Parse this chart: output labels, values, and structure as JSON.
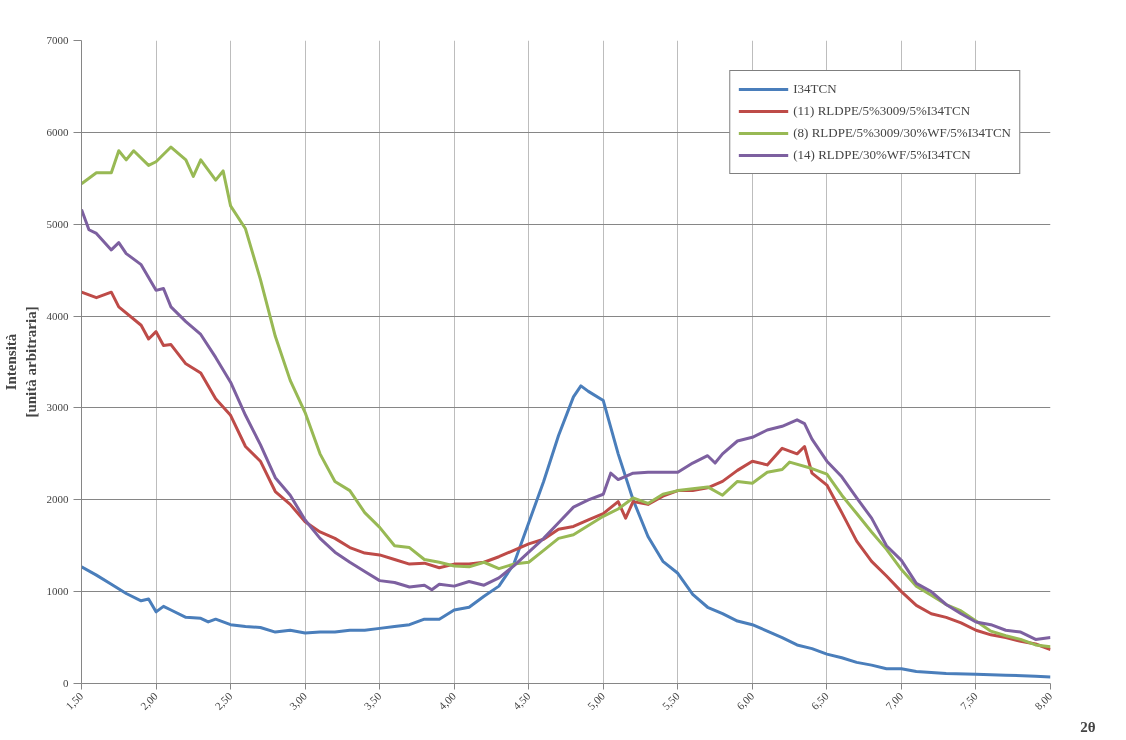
{
  "chart_data": {
    "type": "line",
    "xlabel": "2θ",
    "ylabel": "Intensità\n[unità arbitraria]",
    "xlim": [
      1.5,
      8.0
    ],
    "ylim": [
      0,
      7000
    ],
    "xticks": [
      {
        "value": 1.5,
        "label": "1,50"
      },
      {
        "value": 2.0,
        "label": "2,00"
      },
      {
        "value": 2.5,
        "label": "2,50"
      },
      {
        "value": 3.0,
        "label": "3,00"
      },
      {
        "value": 3.5,
        "label": "3,50"
      },
      {
        "value": 4.0,
        "label": "4,00"
      },
      {
        "value": 4.5,
        "label": "4,50"
      },
      {
        "value": 5.0,
        "label": "5,00"
      },
      {
        "value": 5.5,
        "label": "5,50"
      },
      {
        "value": 6.0,
        "label": "6,00"
      },
      {
        "value": 6.5,
        "label": "6,50"
      },
      {
        "value": 7.0,
        "label": "7,00"
      },
      {
        "value": 7.5,
        "label": "7,50"
      },
      {
        "value": 8.0,
        "label": "8,00"
      }
    ],
    "yticks": [
      0,
      1000,
      2000,
      3000,
      4000,
      5000,
      6000,
      7000
    ],
    "grid": true,
    "legend": "top right",
    "marker": "none",
    "line_style": "solid",
    "series": [
      {
        "name": "I34TCN",
        "color": "#4a7ebb",
        "x": [
          1.5,
          1.6,
          1.7,
          1.8,
          1.9,
          1.95,
          2.0,
          2.05,
          2.1,
          2.2,
          2.3,
          2.35,
          2.4,
          2.5,
          2.6,
          2.7,
          2.8,
          2.9,
          3.0,
          3.1,
          3.2,
          3.3,
          3.4,
          3.5,
          3.6,
          3.7,
          3.8,
          3.9,
          4.0,
          4.1,
          4.2,
          4.3,
          4.4,
          4.5,
          4.6,
          4.7,
          4.8,
          4.85,
          4.9,
          5.0,
          5.1,
          5.2,
          5.3,
          5.4,
          5.5,
          5.6,
          5.7,
          5.8,
          5.9,
          6.0,
          6.1,
          6.2,
          6.3,
          6.4,
          6.5,
          6.6,
          6.7,
          6.8,
          6.9,
          7.0,
          7.1,
          7.3,
          7.5,
          7.7,
          7.9,
          8.0
        ],
        "values": [
          1270,
          1180,
          1080,
          980,
          900,
          920,
          780,
          840,
          800,
          720,
          710,
          670,
          700,
          640,
          620,
          610,
          560,
          580,
          550,
          560,
          560,
          580,
          580,
          600,
          620,
          640,
          700,
          700,
          800,
          830,
          950,
          1060,
          1300,
          1750,
          2200,
          2700,
          3120,
          3240,
          3180,
          3080,
          2500,
          2000,
          1600,
          1330,
          1200,
          970,
          830,
          760,
          680,
          640,
          570,
          500,
          420,
          380,
          320,
          280,
          230,
          200,
          160,
          160,
          130,
          110,
          100,
          90,
          80,
          70
        ]
      },
      {
        "name": "(11) RLDPE/5%3009/5%I34TCN",
        "color": "#be4b48",
        "x": [
          1.5,
          1.6,
          1.7,
          1.75,
          1.9,
          1.95,
          2.0,
          2.05,
          2.1,
          2.2,
          2.3,
          2.4,
          2.5,
          2.6,
          2.7,
          2.8,
          2.9,
          3.0,
          3.1,
          3.2,
          3.3,
          3.4,
          3.5,
          3.6,
          3.7,
          3.8,
          3.9,
          4.0,
          4.1,
          4.2,
          4.3,
          4.4,
          4.5,
          4.6,
          4.7,
          4.8,
          4.9,
          5.0,
          5.1,
          5.15,
          5.2,
          5.3,
          5.4,
          5.5,
          5.6,
          5.7,
          5.8,
          5.9,
          6.0,
          6.1,
          6.2,
          6.3,
          6.35,
          6.4,
          6.5,
          6.6,
          6.7,
          6.8,
          6.9,
          7.0,
          7.1,
          7.2,
          7.3,
          7.4,
          7.5,
          7.6,
          7.7,
          7.8,
          7.9,
          8.0
        ],
        "values": [
          4260,
          4200,
          4260,
          4100,
          3900,
          3750,
          3830,
          3680,
          3690,
          3480,
          3380,
          3100,
          2920,
          2580,
          2420,
          2090,
          1950,
          1760,
          1650,
          1580,
          1480,
          1420,
          1400,
          1350,
          1300,
          1310,
          1260,
          1300,
          1300,
          1320,
          1380,
          1450,
          1520,
          1570,
          1680,
          1710,
          1780,
          1850,
          1980,
          1800,
          1980,
          1950,
          2040,
          2100,
          2100,
          2130,
          2200,
          2320,
          2420,
          2380,
          2560,
          2500,
          2580,
          2290,
          2160,
          1860,
          1550,
          1330,
          1170,
          1000,
          850,
          760,
          720,
          660,
          580,
          530,
          500,
          460,
          430,
          370
        ]
      },
      {
        "name": "(8) RLDPE/5%3009/30%WF/5%I34TCN",
        "color": "#98b954",
        "x": [
          1.5,
          1.6,
          1.7,
          1.75,
          1.8,
          1.85,
          1.95,
          2.0,
          2.1,
          2.2,
          2.25,
          2.3,
          2.4,
          2.45,
          2.5,
          2.6,
          2.7,
          2.8,
          2.9,
          3.0,
          3.1,
          3.2,
          3.3,
          3.4,
          3.5,
          3.6,
          3.7,
          3.8,
          3.9,
          4.0,
          4.1,
          4.2,
          4.3,
          4.4,
          4.5,
          4.6,
          4.7,
          4.8,
          4.9,
          5.0,
          5.1,
          5.2,
          5.3,
          5.4,
          5.5,
          5.6,
          5.7,
          5.8,
          5.9,
          6.0,
          6.1,
          6.2,
          6.25,
          6.4,
          6.5,
          6.6,
          6.7,
          6.8,
          6.9,
          7.0,
          7.1,
          7.2,
          7.3,
          7.4,
          7.5,
          7.6,
          7.7,
          7.8,
          7.9,
          8.0
        ],
        "values": [
          5440,
          5560,
          5560,
          5800,
          5700,
          5800,
          5640,
          5680,
          5840,
          5700,
          5520,
          5700,
          5480,
          5580,
          5200,
          4950,
          4400,
          3780,
          3300,
          2950,
          2500,
          2200,
          2100,
          1860,
          1700,
          1500,
          1480,
          1350,
          1320,
          1280,
          1270,
          1320,
          1250,
          1300,
          1320,
          1450,
          1580,
          1620,
          1720,
          1820,
          1900,
          2020,
          1960,
          2060,
          2100,
          2120,
          2140,
          2050,
          2200,
          2180,
          2300,
          2330,
          2410,
          2340,
          2280,
          2050,
          1850,
          1650,
          1460,
          1240,
          1060,
          960,
          860,
          790,
          680,
          570,
          520,
          480,
          420,
          400
        ]
      },
      {
        "name": "(14) RLDPE/30%WF/5%I34TCN",
        "color": "#7d60a0",
        "x": [
          1.5,
          1.55,
          1.6,
          1.7,
          1.75,
          1.8,
          1.9,
          2.0,
          2.05,
          2.1,
          2.2,
          2.3,
          2.4,
          2.5,
          2.6,
          2.7,
          2.8,
          2.9,
          3.0,
          3.1,
          3.2,
          3.3,
          3.4,
          3.5,
          3.6,
          3.7,
          3.8,
          3.85,
          3.9,
          4.0,
          4.1,
          4.2,
          4.3,
          4.4,
          4.5,
          4.6,
          4.7,
          4.8,
          4.9,
          5.0,
          5.05,
          5.1,
          5.2,
          5.3,
          5.4,
          5.5,
          5.6,
          5.7,
          5.75,
          5.8,
          5.9,
          6.0,
          6.1,
          6.2,
          6.3,
          6.35,
          6.4,
          6.5,
          6.6,
          6.7,
          6.8,
          6.9,
          7.0,
          7.1,
          7.2,
          7.3,
          7.4,
          7.5,
          7.6,
          7.7,
          7.8,
          7.9,
          8.0
        ],
        "values": [
          5160,
          4940,
          4900,
          4720,
          4800,
          4680,
          4560,
          4280,
          4300,
          4100,
          3940,
          3800,
          3550,
          3280,
          2920,
          2600,
          2240,
          2050,
          1780,
          1580,
          1430,
          1320,
          1220,
          1120,
          1100,
          1050,
          1070,
          1020,
          1080,
          1060,
          1110,
          1070,
          1150,
          1280,
          1430,
          1580,
          1750,
          1920,
          2000,
          2060,
          2290,
          2220,
          2290,
          2300,
          2300,
          2300,
          2400,
          2480,
          2400,
          2500,
          2640,
          2680,
          2760,
          2800,
          2870,
          2830,
          2660,
          2420,
          2250,
          2020,
          1800,
          1500,
          1340,
          1090,
          1000,
          860,
          760,
          670,
          640,
          580,
          560,
          480,
          500
        ]
      }
    ]
  }
}
